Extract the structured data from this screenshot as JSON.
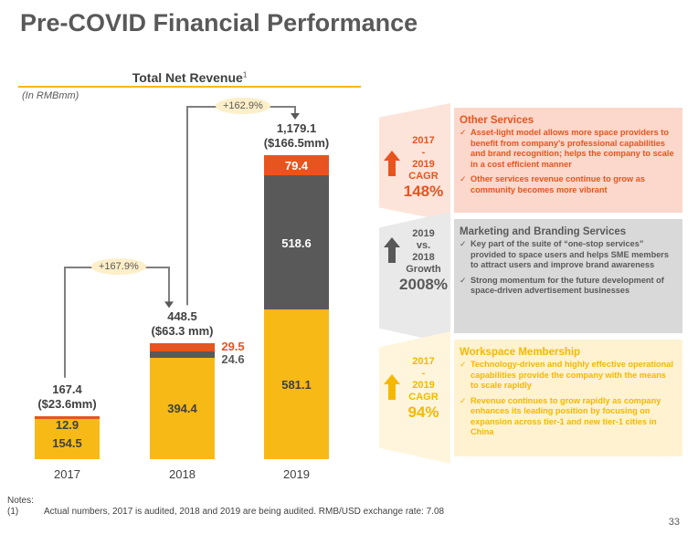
{
  "title": "Pre-COVID Financial Performance",
  "chart_data": {
    "type": "bar",
    "stacked": true,
    "title": "Total Net Revenue",
    "title_footnote": "1",
    "unit_label": "(In RMBmm)",
    "categories": [
      "2017",
      "2018",
      "2019"
    ],
    "series": [
      {
        "name": "Workspace Membership",
        "color": "#f6b916",
        "values": [
          154.5,
          394.4,
          581.1
        ],
        "labels": [
          "154.5",
          "394.4",
          "581.1"
        ]
      },
      {
        "name": "Marketing and Branding Services",
        "color": "#595959",
        "values": [
          0,
          24.6,
          518.6
        ],
        "labels": [
          "",
          "24.6",
          "518.6"
        ]
      },
      {
        "name": "Other Services",
        "color": "#e8541e",
        "values": [
          12.9,
          29.5,
          79.4
        ],
        "labels": [
          "12.9",
          "29.5",
          "79.4"
        ]
      }
    ],
    "totals": [
      {
        "value": "167.4",
        "usd": "($23.6mm)"
      },
      {
        "value": "448.5",
        "usd": "($63.3 mm)"
      },
      {
        "value": "1,179.1",
        "usd": "($166.5mm)"
      }
    ],
    "growth": [
      {
        "from": "2017",
        "to": "2018",
        "label": "+167.9%"
      },
      {
        "from": "2018",
        "to": "2019",
        "label": "+162.9%"
      }
    ],
    "ylim": [
      0,
      1179.1
    ]
  },
  "segments": [
    {
      "name": "Other Services",
      "color": "#e8541e",
      "side": [
        "2017",
        "-",
        "2019",
        "CAGR"
      ],
      "metric": "148%",
      "bullets": [
        "Asset-light model allows more space providers to benefit from company's professional capabilities and brand recognition; helps the company to scale in a cost efficient manner",
        "Other services revenue continue to grow as community becomes more vibrant"
      ]
    },
    {
      "name": "Marketing and Branding Services",
      "color": "#595959",
      "side": [
        "2019",
        "vs.",
        "2018",
        "Growth"
      ],
      "metric": "2008%",
      "bullets": [
        "Key part of the suite of “one-stop services” provided to space users and helps SME members to attract users and improve brand awareness",
        "Strong momentum for the future development of space-driven advertisement businesses"
      ]
    },
    {
      "name": "Workspace Membership",
      "color": "#f5b800",
      "side": [
        "2017",
        "-",
        "2019",
        "CAGR"
      ],
      "metric": "94%",
      "bullets": [
        "Technology-driven and highly effective operational capabilities provide the company with the means to scale rapidly",
        "Revenue continues to grow rapidly as company enhances its leading position by focusing on expansion across tier-1 and new tier-1 cities in China"
      ]
    }
  ],
  "notes": {
    "heading": "Notes:",
    "items": [
      {
        "num": "(1)",
        "text": "Actual numbers, 2017 is audited, 2018 and 2019 are being audited. RMB/USD exchange rate: 7.08"
      }
    ]
  },
  "page_number": "33"
}
